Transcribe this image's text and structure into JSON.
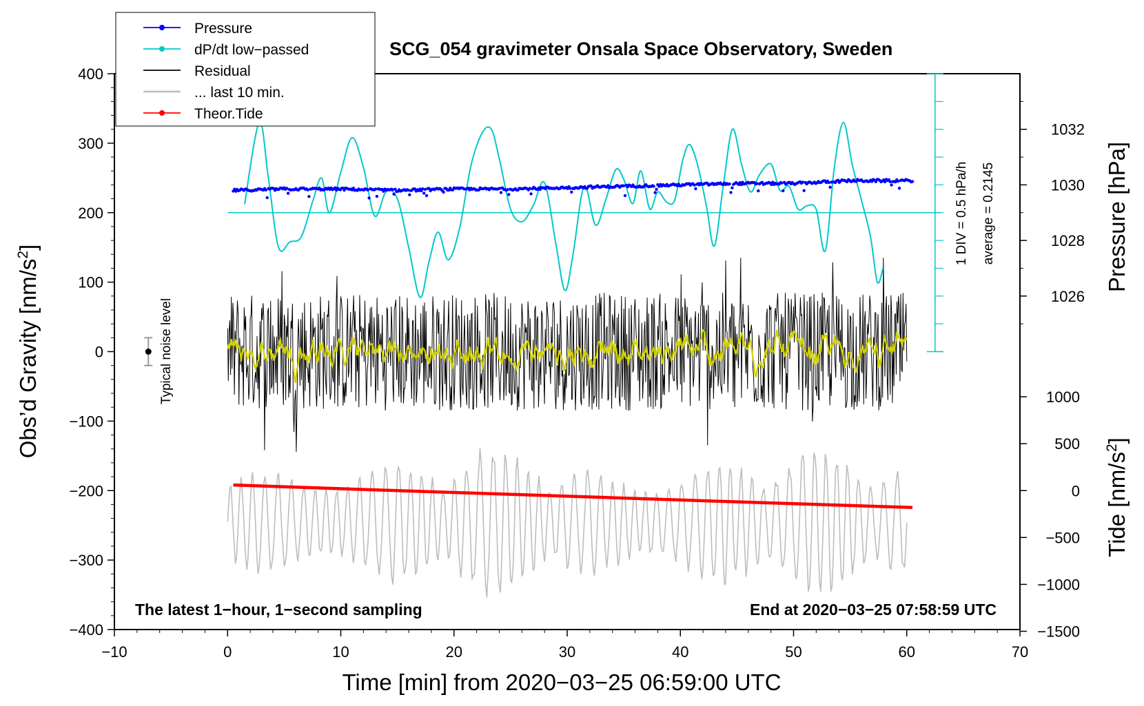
{
  "chart_data": {
    "type": "line",
    "title": "SCG_054 gravimeter Onsala Space Observatory, Sweden",
    "xlabel": "Time [min] from 2020−03−25 06:59:00 UTC",
    "ylabel": "Obs’d Gravity [nm/s",
    "ylabel_sup": "2",
    "ylabel_end": "]",
    "y2label_pressure": "Pressure [hPa]",
    "y2label_tide": "Tide [nm/s",
    "y2label_tide_sup": "2",
    "y2label_tide_end": "]",
    "xlim": [
      -10,
      70
    ],
    "ylim": [
      -400,
      400
    ],
    "x_ticks": [
      "−10",
      "0",
      "10",
      "20",
      "30",
      "40",
      "50",
      "60",
      "70"
    ],
    "x_tick_values": [
      -10,
      0,
      10,
      20,
      30,
      40,
      50,
      60,
      70
    ],
    "y_ticks": [
      "400",
      "300",
      "200",
      "100",
      "0",
      "−100",
      "−200",
      "−300",
      "−400"
    ],
    "y_tick_values": [
      400,
      300,
      200,
      100,
      0,
      -100,
      -200,
      -300,
      -400
    ],
    "pressure_axis": {
      "unit": "hPa",
      "ticks": [
        "1026",
        "1028",
        "1030",
        "1032"
      ],
      "tick_values": [
        1026,
        1028,
        1030,
        1032
      ],
      "mapping": {
        "hpa": [
          1030,
          1032
        ],
        "gravity": [
          240,
          320
        ]
      }
    },
    "tide_axis": {
      "unit": "nm/s2",
      "ticks": [
        "1000",
        "500",
        "0",
        "−500",
        "−1000",
        "−1500"
      ],
      "tick_values": [
        1000,
        500,
        0,
        -500,
        -1000,
        -1500
      ],
      "mapping": {
        "tide": [
          0,
          1000
        ],
        "gravity": [
          -200,
          -65
        ]
      }
    },
    "legend": [
      {
        "label": "Pressure",
        "color": "#0000ff",
        "marker": "dot"
      },
      {
        "label": "dP/dt low−passed",
        "color": "#00c8c8",
        "marker": "dot"
      },
      {
        "label": "Residual",
        "color": "#000000",
        "marker": "none"
      },
      {
        "label": "... last 10 min.",
        "color": "#bdbdbd",
        "marker": "none"
      },
      {
        "label": "Theor.Tide",
        "color": "#ff0000",
        "marker": "dot"
      }
    ],
    "legend_position": "top-left",
    "scale_label_div": "1 DIV = 0.5 hPa/h",
    "scale_label_avg": "average = 0.2145",
    "noise_label": "Typical noise level",
    "noise_level": {
      "x": -7,
      "y": 0,
      "err": 20
    },
    "note_left": "The latest 1−hour, 1−second sampling",
    "note_right": "End at 2020−03−25 07:58:59 UTC",
    "dpdt_baseline_gravity": 200,
    "series": [
      {
        "name": "Pressure",
        "color": "#0000ff",
        "unit": "hPa",
        "x": [
          0.5,
          5,
          10,
          15,
          20,
          25,
          30,
          35,
          40,
          45,
          50,
          55,
          60.5
        ],
        "values": [
          1029.8,
          1029.85,
          1029.85,
          1029.8,
          1029.85,
          1029.85,
          1029.9,
          1029.95,
          1030.0,
          1030.05,
          1030.05,
          1030.15,
          1030.15
        ]
      },
      {
        "name": "dP/dt low−passed",
        "color": "#00c8c8",
        "unit": "gravity-axis",
        "x": [
          1.5,
          2.8,
          3.6,
          4.5,
          5.5,
          6.5,
          7.5,
          8.3,
          9.0,
          10.0,
          11.0,
          12.0,
          13.0,
          14.0,
          15.0,
          16.0,
          17.0,
          17.8,
          18.6,
          19.5,
          20.5,
          21.5,
          22.5,
          23.3,
          24.0,
          25.0,
          26.0,
          27.0,
          28.0,
          29.0,
          29.8,
          30.5,
          31.5,
          32.5,
          33.4,
          34.3,
          35.0,
          35.8,
          36.5,
          37.3,
          38.0,
          38.8,
          39.5,
          40.2,
          40.8,
          41.5,
          42.3,
          43.0,
          43.8,
          44.6,
          45.4,
          46.2,
          47.0,
          48.0,
          48.8,
          49.6,
          50.4,
          51.2,
          52.0,
          52.8,
          53.6,
          54.4,
          55.2,
          56.0,
          56.8,
          57.4,
          57.9
        ],
        "values": [
          212,
          330,
          250,
          150,
          158,
          165,
          215,
          250,
          200,
          258,
          308,
          265,
          195,
          230,
          220,
          150,
          78,
          130,
          172,
          132,
          178,
          268,
          315,
          320,
          278,
          205,
          187,
          210,
          243,
          155,
          88,
          138,
          238,
          182,
          218,
          262,
          248,
          213,
          260,
          205,
          230,
          215,
          218,
          275,
          298,
          270,
          210,
          152,
          240,
          320,
          270,
          230,
          255,
          270,
          232,
          238,
          205,
          210,
          205,
          145,
          265,
          330,
          268,
          218,
          165,
          100,
          120
        ]
      },
      {
        "name": "Residual",
        "color": "#000000",
        "unit": "gravity-axis",
        "x": [
          0,
          60
        ],
        "values_range": [
          -160,
          135
        ],
        "smoothed_color": "#d2d200"
      },
      {
        "name": "... last 10 min.",
        "color": "#bdbdbd",
        "unit": "gravity-axis",
        "x": [
          0,
          60
        ],
        "values_range": [
          -365,
          -135
        ]
      },
      {
        "name": "Theor.Tide",
        "color": "#ff0000",
        "unit": "nm/s2",
        "x": [
          0.5,
          10,
          20,
          30,
          40,
          50,
          60.5
        ],
        "values": [
          60,
          20,
          -20,
          -60,
          -100,
          -140,
          -180
        ]
      }
    ]
  }
}
